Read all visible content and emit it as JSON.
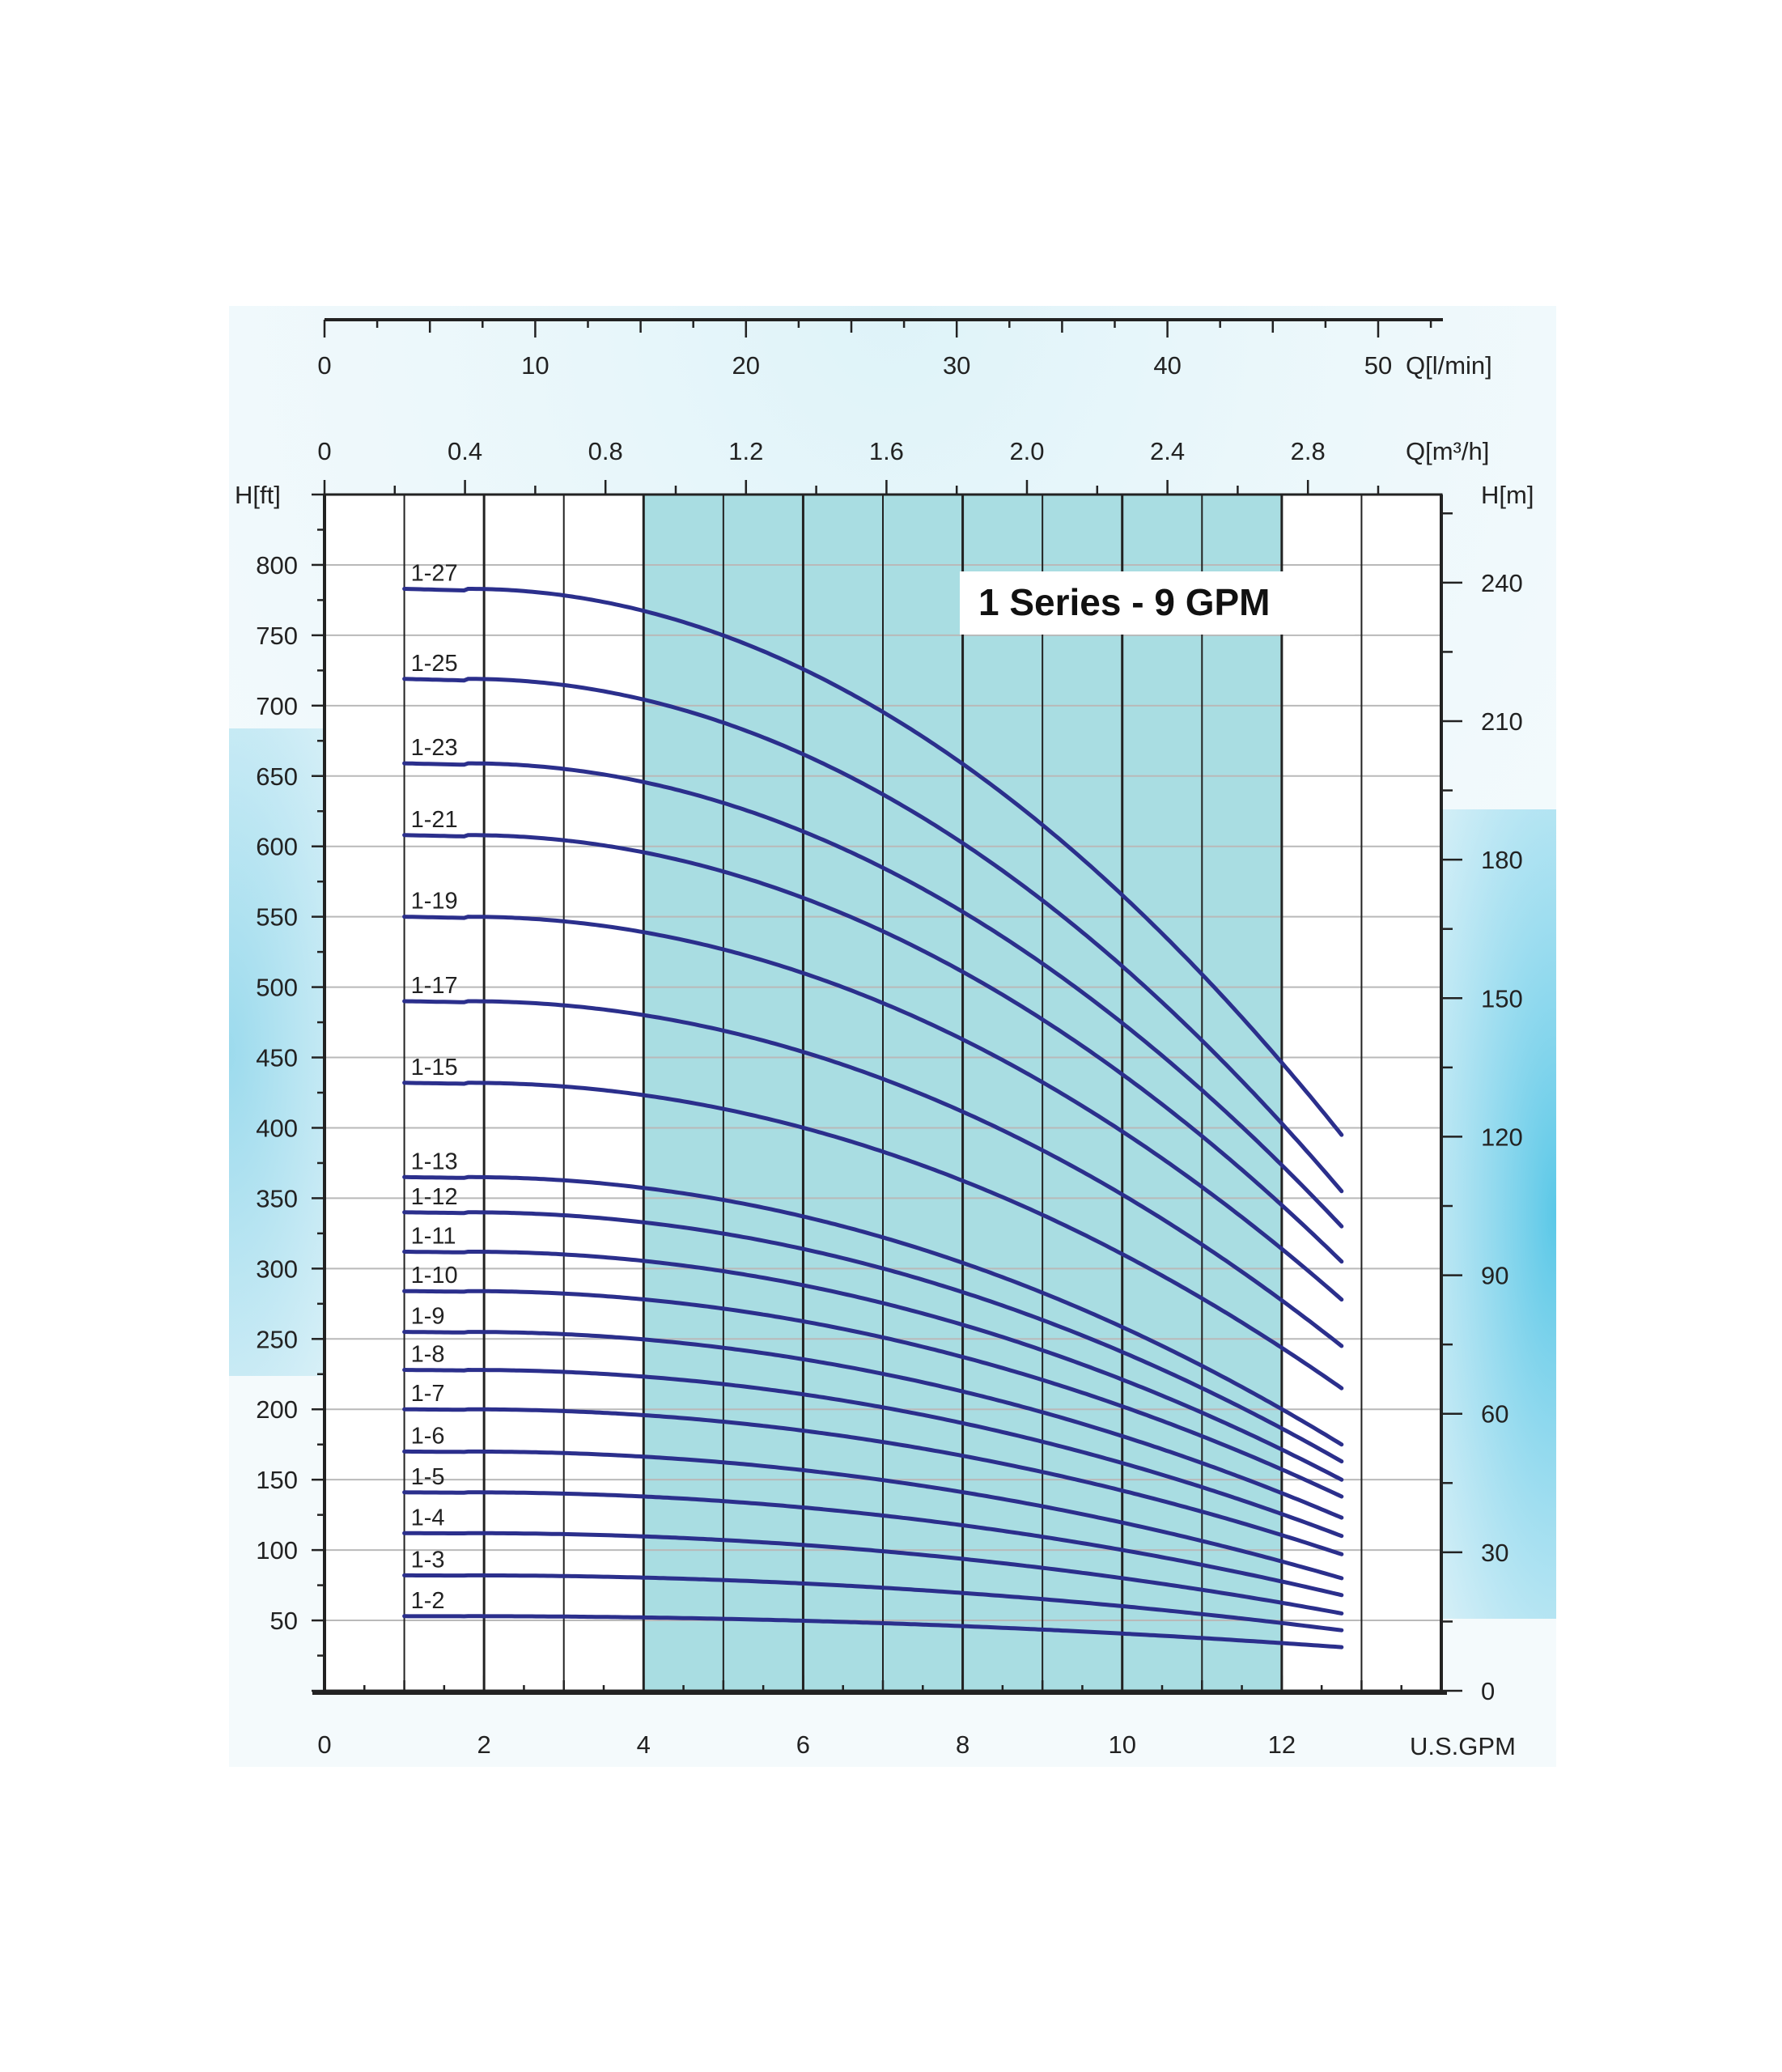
{
  "chart_data": {
    "type": "line",
    "title": "1 Series - 9 GPM",
    "colors": {
      "curve": "#2b2f8c",
      "band": "#a9dde2",
      "grid_major": "#222222",
      "grid_minor": "#b9b9b9",
      "halo": "#7fd0e8"
    },
    "x_axis": {
      "label": "U.S.GPM",
      "range": [
        0,
        14
      ],
      "ticks": [
        {
          "value": 0,
          "label": "0"
        },
        {
          "value": 2,
          "label": "2"
        },
        {
          "value": 4,
          "label": "4"
        },
        {
          "value": 6,
          "label": "6"
        },
        {
          "value": 8,
          "label": "8"
        },
        {
          "value": 10,
          "label": "10"
        },
        {
          "value": 12,
          "label": "12"
        }
      ]
    },
    "y_axis_left": {
      "label": "H[ft]",
      "range": [
        0,
        850
      ],
      "ticks": [
        {
          "value": 50,
          "label": "50"
        },
        {
          "value": 100,
          "label": "100"
        },
        {
          "value": 150,
          "label": "150"
        },
        {
          "value": 200,
          "label": "200"
        },
        {
          "value": 250,
          "label": "250"
        },
        {
          "value": 300,
          "label": "300"
        },
        {
          "value": 350,
          "label": "350"
        },
        {
          "value": 400,
          "label": "400"
        },
        {
          "value": 450,
          "label": "450"
        },
        {
          "value": 500,
          "label": "500"
        },
        {
          "value": 550,
          "label": "550"
        },
        {
          "value": 600,
          "label": "600"
        },
        {
          "value": 650,
          "label": "650"
        },
        {
          "value": 700,
          "label": "700"
        },
        {
          "value": 750,
          "label": "750"
        },
        {
          "value": 800,
          "label": "800"
        }
      ]
    },
    "y_axis_right": {
      "label": "H[m]",
      "ticks": [
        {
          "value": 0,
          "label": "0"
        },
        {
          "value": 30,
          "label": "30"
        },
        {
          "value": 60,
          "label": "60"
        },
        {
          "value": 90,
          "label": "90"
        },
        {
          "value": 120,
          "label": "120"
        },
        {
          "value": 150,
          "label": "150"
        },
        {
          "value": 180,
          "label": "180"
        },
        {
          "value": 210,
          "label": "210"
        },
        {
          "value": 240,
          "label": "240"
        }
      ]
    },
    "top_axis_lmin": {
      "label": "Q[l/min]",
      "ticks": [
        {
          "value": 0,
          "label": "0"
        },
        {
          "value": 10,
          "label": "10"
        },
        {
          "value": 20,
          "label": "20"
        },
        {
          "value": 30,
          "label": "30"
        },
        {
          "value": 40,
          "label": "40"
        },
        {
          "value": 50,
          "label": "50"
        }
      ]
    },
    "top_axis_m3h": {
      "label": "Q[m³/h]",
      "ticks": [
        {
          "value": 0,
          "label": "0"
        },
        {
          "value": 0.4,
          "label": "0.4"
        },
        {
          "value": 0.8,
          "label": "0.8"
        },
        {
          "value": 1.2,
          "label": "1.2"
        },
        {
          "value": 1.6,
          "label": "1.6"
        },
        {
          "value": 2.0,
          "label": "2.0"
        },
        {
          "value": 2.4,
          "label": "2.4"
        },
        {
          "value": 2.8,
          "label": "2.8"
        }
      ]
    },
    "recommended_range": [
      4,
      12
    ],
    "curve_x_range": [
      1,
      12.75
    ],
    "series": [
      {
        "name": "1-27",
        "values": [
          783,
          395
        ]
      },
      {
        "name": "1-25",
        "values": [
          719,
          355
        ]
      },
      {
        "name": "1-23",
        "values": [
          659,
          330
        ]
      },
      {
        "name": "1-21",
        "values": [
          608,
          305
        ]
      },
      {
        "name": "1-19",
        "values": [
          550,
          278
        ]
      },
      {
        "name": "1-17",
        "values": [
          490,
          245
        ]
      },
      {
        "name": "1-15",
        "values": [
          432,
          215
        ]
      },
      {
        "name": "1-13",
        "values": [
          365,
          175
        ]
      },
      {
        "name": "1-12",
        "values": [
          340,
          163
        ]
      },
      {
        "name": "1-11",
        "values": [
          312,
          150
        ]
      },
      {
        "name": "1-10",
        "values": [
          284,
          138
        ]
      },
      {
        "name": "1-9",
        "values": [
          255,
          123
        ]
      },
      {
        "name": "1-8",
        "values": [
          228,
          110
        ]
      },
      {
        "name": "1-7",
        "values": [
          200,
          97
        ]
      },
      {
        "name": "1-6",
        "values": [
          170,
          80
        ]
      },
      {
        "name": "1-5",
        "values": [
          141,
          68
        ]
      },
      {
        "name": "1-4",
        "values": [
          112,
          55
        ]
      },
      {
        "name": "1-3",
        "values": [
          82,
          43
        ]
      },
      {
        "name": "1-2",
        "values": [
          53,
          31
        ]
      }
    ]
  }
}
